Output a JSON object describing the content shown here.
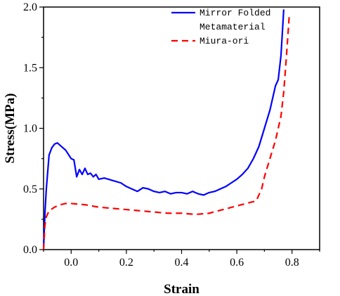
{
  "chart_data": {
    "type": "line",
    "title": "",
    "xlabel": "Strain",
    "ylabel": "Stress(MPa)",
    "xlim": [
      -0.1,
      0.9
    ],
    "ylim": [
      0.0,
      2.0
    ],
    "x_ticks": [
      0.0,
      0.2,
      0.4,
      0.6,
      0.8
    ],
    "x_tick_labels": [
      "0.0",
      "0.2",
      "0.4",
      "0.6",
      "0.8"
    ],
    "y_ticks": [
      0.0,
      0.5,
      1.0,
      1.5,
      2.0
    ],
    "y_tick_labels": [
      "0.0",
      "0.5",
      "1.0",
      "1.5",
      "2.0"
    ],
    "grid": false,
    "legend_position": "top-right",
    "series": [
      {
        "name": "Mirror Folded Metamaterial",
        "legend_lines": [
          "Mirror Folded",
          "Metamaterial"
        ],
        "color": "#0000ff",
        "style": "solid",
        "x": [
          -0.1,
          -0.095,
          -0.09,
          -0.08,
          -0.07,
          -0.06,
          -0.05,
          -0.04,
          -0.02,
          0.0,
          0.01,
          0.02,
          0.03,
          0.04,
          0.05,
          0.06,
          0.07,
          0.08,
          0.09,
          0.1,
          0.12,
          0.15,
          0.18,
          0.2,
          0.22,
          0.24,
          0.26,
          0.28,
          0.3,
          0.32,
          0.34,
          0.36,
          0.38,
          0.4,
          0.42,
          0.44,
          0.46,
          0.48,
          0.5,
          0.52,
          0.54,
          0.56,
          0.58,
          0.6,
          0.62,
          0.64,
          0.66,
          0.68,
          0.7,
          0.72,
          0.74,
          0.75,
          0.76,
          0.77
        ],
        "y": [
          0.0,
          0.3,
          0.5,
          0.78,
          0.84,
          0.87,
          0.88,
          0.86,
          0.82,
          0.75,
          0.74,
          0.6,
          0.66,
          0.62,
          0.67,
          0.62,
          0.63,
          0.6,
          0.62,
          0.58,
          0.59,
          0.57,
          0.55,
          0.52,
          0.5,
          0.48,
          0.51,
          0.5,
          0.48,
          0.47,
          0.48,
          0.46,
          0.47,
          0.47,
          0.46,
          0.48,
          0.46,
          0.45,
          0.47,
          0.48,
          0.5,
          0.52,
          0.55,
          0.58,
          0.62,
          0.67,
          0.75,
          0.85,
          1.0,
          1.15,
          1.35,
          1.4,
          1.6,
          1.98
        ]
      },
      {
        "name": "Miura-ori",
        "legend_lines": [
          "Miura-ori"
        ],
        "color": "#ff0000",
        "style": "dashed",
        "x": [
          -0.1,
          -0.095,
          -0.09,
          -0.08,
          -0.06,
          -0.04,
          -0.02,
          0.0,
          0.05,
          0.1,
          0.15,
          0.2,
          0.25,
          0.3,
          0.35,
          0.4,
          0.45,
          0.5,
          0.55,
          0.6,
          0.65,
          0.67,
          0.69,
          0.7,
          0.72,
          0.74,
          0.76,
          0.77,
          0.78,
          0.79
        ],
        "y": [
          0.0,
          0.2,
          0.27,
          0.32,
          0.35,
          0.37,
          0.38,
          0.38,
          0.37,
          0.35,
          0.34,
          0.33,
          0.32,
          0.31,
          0.3,
          0.3,
          0.29,
          0.3,
          0.33,
          0.36,
          0.39,
          0.4,
          0.5,
          0.6,
          0.75,
          0.9,
          1.1,
          1.3,
          1.6,
          1.93
        ]
      }
    ]
  }
}
